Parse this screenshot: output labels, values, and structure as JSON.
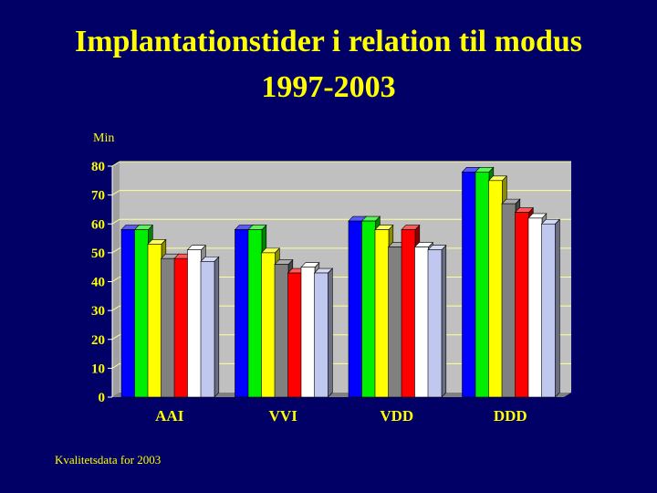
{
  "title": {
    "line1": "Implantationstider i relation til modus",
    "line2": "1997-2003"
  },
  "footnote": "Kvalitetsdata for 2003",
  "chart_data": {
    "type": "bar",
    "ylabel": "Min",
    "xlabel": "",
    "ylim": [
      0,
      80
    ],
    "yticks": [
      0,
      10,
      20,
      30,
      40,
      50,
      60,
      70,
      80
    ],
    "grid": true,
    "categories": [
      "AAI",
      "VVI",
      "VDD",
      "DDD"
    ],
    "series": [
      {
        "color": "#0000ff",
        "values": [
          58,
          58,
          61,
          78
        ]
      },
      {
        "color": "#00ee00",
        "values": [
          58,
          58,
          61,
          78
        ]
      },
      {
        "color": "#ffff00",
        "values": [
          53,
          50,
          58,
          75
        ]
      },
      {
        "color": "#808080",
        "values": [
          48,
          46,
          52,
          67
        ]
      },
      {
        "color": "#ff0000",
        "values": [
          48,
          43,
          58,
          64
        ]
      },
      {
        "color": "#ffffff",
        "values": [
          51,
          45,
          52,
          62
        ]
      },
      {
        "color": "#c0c8f0",
        "values": [
          47,
          43,
          51,
          60
        ]
      }
    ]
  },
  "colors": {
    "background": "#000066",
    "text": "#ffff00",
    "plot_area": "#c0c0c0",
    "gridline": "#ffff99"
  }
}
